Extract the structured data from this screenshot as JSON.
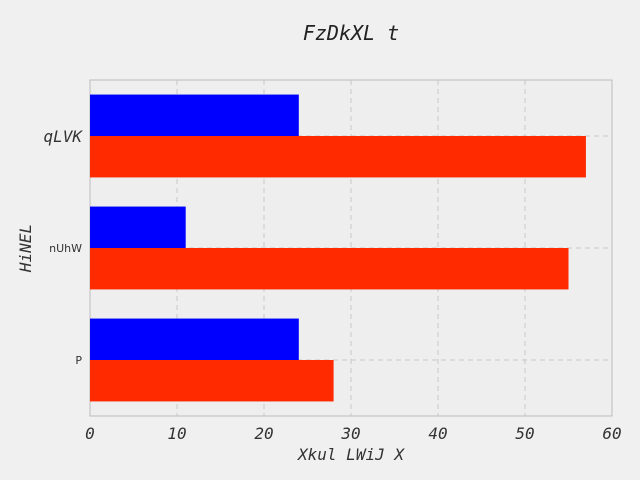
{
  "chart_data": {
    "type": "bar",
    "orientation": "horizontal",
    "title": "FzDkXL t",
    "xlabel": "Xkul  LWiJ  X",
    "ylabel": "HiNEL",
    "categories": [
      "P",
      "nUhW",
      "qLVK"
    ],
    "series": [
      {
        "values": [
          24,
          11,
          24
        ],
        "color": "#0000ff"
      },
      {
        "values": [
          28,
          55,
          57
        ],
        "color": "#ff2a00"
      }
    ],
    "xlim": [
      0,
      60
    ],
    "xticks": [
      "0",
      "10",
      "20",
      "30",
      "40",
      "50",
      "60"
    ],
    "grid": true,
    "legend": "none"
  }
}
